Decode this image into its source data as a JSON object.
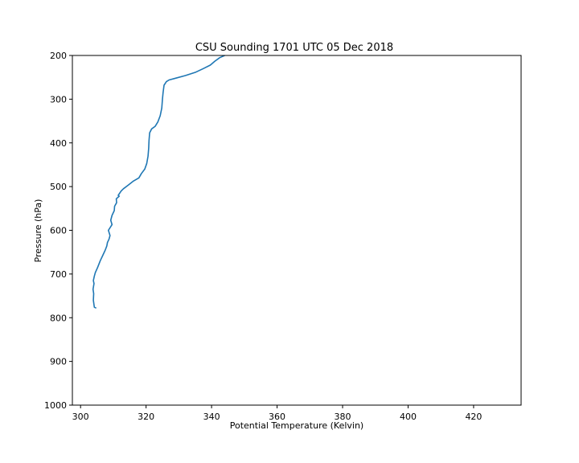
{
  "chart_data": {
    "type": "line",
    "title": "CSU Sounding 1701 UTC 05 Dec 2018",
    "xlabel": "Potential Temperature (Kelvin)",
    "ylabel": "Pressure (hPa)",
    "xlim": [
      297.5,
      434.5
    ],
    "ylim": [
      1000,
      200
    ],
    "y_inverted": true,
    "grid": false,
    "xticks": [
      300,
      320,
      340,
      360,
      380,
      400,
      420
    ],
    "yticks": [
      200,
      300,
      400,
      500,
      600,
      700,
      800,
      900,
      1000
    ],
    "line_color": "#1f77b4",
    "series": [
      {
        "x": [
          304.8,
          304.2,
          303.9,
          304.0,
          303.8,
          304.1,
          303.9,
          304.2,
          304.5,
          305.2,
          306.0,
          306.8,
          307.5,
          308.0,
          308.2,
          308.7,
          309.0,
          308.5,
          309.6,
          309.2,
          309.6,
          310.3,
          310.4,
          311.0,
          310.9,
          311.8,
          311.5,
          312.4,
          313.1,
          314.5,
          316.0,
          317.8,
          318.6,
          319.6,
          320.2,
          320.6,
          320.8,
          320.9,
          321.1,
          321.7,
          322.8,
          323.6,
          324.3,
          324.8,
          325.0,
          325.2,
          325.5,
          326.2,
          327.0,
          329.0,
          332.0,
          335.2,
          337.5,
          339.6,
          341.0,
          342.5,
          344.0
        ],
        "y": [
          778,
          776,
          760,
          745,
          735,
          722,
          715,
          705,
          697,
          685,
          670,
          657,
          646,
          636,
          628,
          620,
          612,
          600,
          587,
          577,
          566,
          555,
          545,
          537,
          528,
          522,
          520,
          510,
          505,
          497,
          488,
          480,
          470,
          460,
          447,
          430,
          412,
          395,
          377,
          368,
          362,
          352,
          338,
          320,
          300,
          285,
          268,
          260,
          256,
          252,
          246,
          238,
          230,
          222,
          213,
          205,
          200
        ]
      }
    ]
  }
}
